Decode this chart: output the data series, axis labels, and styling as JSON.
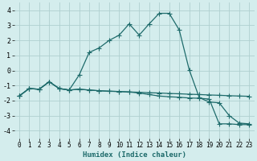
{
  "xlabel": "Humidex (Indice chaleur)",
  "xlim": [
    -0.5,
    23.5
  ],
  "ylim": [
    -4.5,
    4.5
  ],
  "xticks": [
    0,
    1,
    2,
    3,
    4,
    5,
    6,
    7,
    8,
    9,
    10,
    11,
    12,
    13,
    14,
    15,
    16,
    17,
    18,
    19,
    20,
    21,
    22,
    23
  ],
  "yticks": [
    -4,
    -3,
    -2,
    -1,
    0,
    1,
    2,
    3,
    4
  ],
  "background_color": "#d4eded",
  "grid_color": "#b0d0d0",
  "line_color": "#1e6b6b",
  "line1_x": [
    0,
    1,
    2,
    3,
    4,
    5,
    6,
    7,
    8,
    9,
    10,
    11,
    12,
    13,
    14,
    15,
    16,
    17,
    18,
    19,
    20,
    21,
    22,
    23
  ],
  "line1_y": [
    -1.7,
    -1.2,
    -1.25,
    -0.75,
    -1.2,
    -1.3,
    -1.25,
    -1.3,
    -1.35,
    -1.38,
    -1.4,
    -1.43,
    -1.45,
    -1.48,
    -1.5,
    -1.53,
    -1.55,
    -1.58,
    -1.6,
    -1.63,
    -1.65,
    -1.68,
    -1.7,
    -1.72
  ],
  "line2_x": [
    0,
    1,
    2,
    3,
    4,
    5,
    6,
    7,
    8,
    9,
    10,
    11,
    12,
    13,
    14,
    15,
    16,
    17,
    18,
    19,
    20,
    21,
    22,
    23
  ],
  "line2_y": [
    -1.7,
    -1.2,
    -1.25,
    -0.75,
    -1.2,
    -1.3,
    -0.3,
    1.2,
    1.5,
    2.0,
    2.35,
    3.1,
    2.35,
    3.1,
    3.8,
    3.8,
    2.7,
    0.05,
    -1.8,
    -2.1,
    -2.15,
    -3.0,
    -3.5,
    -3.55
  ],
  "line3_x": [
    0,
    1,
    2,
    3,
    4,
    5,
    6,
    7,
    8,
    9,
    10,
    11,
    12,
    13,
    14,
    15,
    16,
    17,
    18,
    19,
    20,
    21,
    22,
    23
  ],
  "line3_y": [
    -1.7,
    -1.2,
    -1.25,
    -0.75,
    -1.2,
    -1.3,
    -1.25,
    -1.3,
    -1.35,
    -1.38,
    -1.4,
    -1.43,
    -1.5,
    -1.6,
    -1.7,
    -1.75,
    -1.78,
    -1.83,
    -1.85,
    -1.9,
    -3.55,
    -3.55,
    -3.6,
    -3.6
  ]
}
